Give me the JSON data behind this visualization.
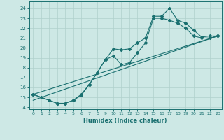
{
  "xlabel": "Humidex (Indice chaleur)",
  "ylabel": "",
  "xlim": [
    -0.5,
    23.5
  ],
  "ylim": [
    13.8,
    24.7
  ],
  "yticks": [
    14,
    15,
    16,
    17,
    18,
    19,
    20,
    21,
    22,
    23,
    24
  ],
  "xticks": [
    0,
    1,
    2,
    3,
    4,
    5,
    6,
    7,
    8,
    9,
    10,
    11,
    12,
    13,
    14,
    15,
    16,
    17,
    18,
    19,
    20,
    21,
    22,
    23
  ],
  "bg_color": "#cde8e5",
  "line_color": "#1a7070",
  "grid_color": "#b0d0cc",
  "series1_x": [
    0,
    1,
    2,
    3,
    4,
    5,
    6,
    7,
    8,
    9,
    10,
    11,
    12,
    13,
    14,
    15,
    16,
    17,
    18,
    19,
    20,
    21,
    22,
    23
  ],
  "series1_y": [
    15.3,
    15.0,
    14.7,
    14.4,
    14.4,
    14.7,
    15.3,
    16.3,
    17.5,
    18.8,
    19.9,
    19.8,
    19.9,
    20.5,
    21.0,
    23.2,
    23.2,
    24.0,
    22.8,
    22.5,
    21.8,
    21.1,
    21.2,
    21.2
  ],
  "series2_x": [
    0,
    3,
    4,
    5,
    6,
    7,
    8,
    9,
    10,
    11,
    12,
    13,
    14,
    15,
    16,
    17,
    18,
    19,
    20,
    21,
    22,
    23
  ],
  "series2_y": [
    15.3,
    14.4,
    14.4,
    14.7,
    15.2,
    16.3,
    17.5,
    18.8,
    19.2,
    18.3,
    18.5,
    19.5,
    20.5,
    23.0,
    23.0,
    22.8,
    22.5,
    22.0,
    21.2,
    21.0,
    21.0,
    21.2
  ],
  "line1_x": [
    0,
    23
  ],
  "line1_y": [
    15.3,
    21.2
  ],
  "line2_x": [
    0,
    23
  ],
  "line2_y": [
    14.7,
    21.2
  ]
}
